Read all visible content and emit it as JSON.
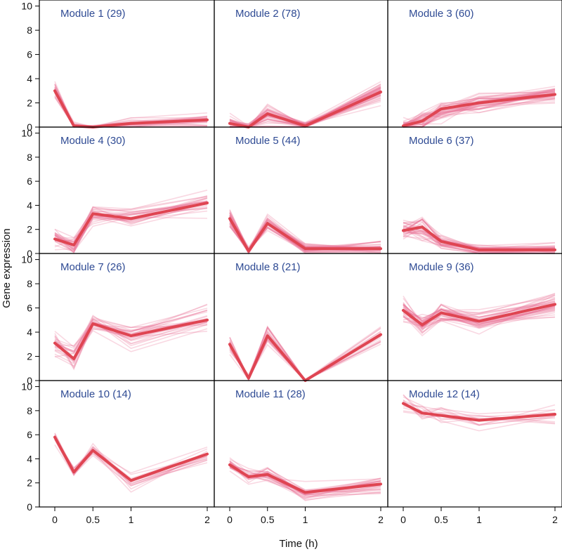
{
  "figure": {
    "xlabel": "Time (h)",
    "ylabel": "Gene expression",
    "colors": {
      "mean_line": "#df4552",
      "gene_lines": "#e87496",
      "panel_title": "#2f4b94",
      "frame": "#000000"
    }
  },
  "chart_data": {
    "type": "line",
    "layout": "4x3 small multiples",
    "x_values": [
      0,
      0.25,
      0.5,
      1,
      2
    ],
    "x_ticks": [
      0,
      0.5,
      1,
      2
    ],
    "x_tick_labels": [
      "0",
      "0.5",
      "1",
      "2"
    ],
    "ylim": [
      0,
      10.5
    ],
    "y_ticks": [
      0,
      2,
      4,
      6,
      8,
      10
    ],
    "y_tick_labels": [
      "0",
      "2",
      "4",
      "6",
      "8",
      "10"
    ],
    "xlabel": "Time (h)",
    "ylabel": "Gene expression",
    "grid": false,
    "panels": [
      {
        "title": "Module 1 (29)",
        "mean": [
          3.0,
          0.1,
          0.0,
          0.3,
          0.6
        ],
        "spread": [
          0.7,
          0.25,
          0.15,
          0.55,
          0.7
        ]
      },
      {
        "title": "Module 2 (78)",
        "mean": [
          0.3,
          0.0,
          1.1,
          0.1,
          2.9
        ],
        "spread": [
          0.7,
          0.3,
          0.9,
          0.3,
          0.8
        ]
      },
      {
        "title": "Module 3 (60)",
        "mean": [
          0.1,
          0.5,
          1.5,
          2.0,
          2.7
        ],
        "spread": [
          0.6,
          0.8,
          1.0,
          0.8,
          0.7
        ]
      },
      {
        "title": "Module 4 (30)",
        "mean": [
          1.2,
          0.7,
          3.3,
          2.9,
          4.2
        ],
        "spread": [
          1.0,
          0.9,
          0.9,
          0.8,
          0.9
        ]
      },
      {
        "title": "Module 5 (44)",
        "mean": [
          2.9,
          0.2,
          2.5,
          0.4,
          0.4
        ],
        "spread": [
          0.8,
          0.3,
          0.6,
          0.5,
          0.6
        ]
      },
      {
        "title": "Module 6 (37)",
        "mean": [
          1.9,
          2.2,
          1.0,
          0.3,
          0.3
        ],
        "spread": [
          0.7,
          1.0,
          0.7,
          0.5,
          0.7
        ]
      },
      {
        "title": "Module 7 (26)",
        "mean": [
          3.1,
          1.8,
          4.7,
          3.7,
          5.0
        ],
        "spread": [
          1.0,
          1.2,
          0.9,
          1.0,
          1.0
        ]
      },
      {
        "title": "Module 8 (21)",
        "mean": [
          3.0,
          0.2,
          3.7,
          0.0,
          3.8
        ],
        "spread": [
          1.0,
          0.3,
          0.9,
          0.1,
          1.0
        ]
      },
      {
        "title": "Module 9 (36)",
        "mean": [
          5.8,
          4.6,
          5.6,
          4.9,
          6.3
        ],
        "spread": [
          1.0,
          1.0,
          0.9,
          0.9,
          1.1
        ]
      },
      {
        "title": "Module 10 (14)",
        "mean": [
          5.8,
          2.9,
          4.7,
          2.2,
          4.4
        ],
        "spread": [
          0.7,
          0.6,
          0.6,
          0.8,
          0.7
        ]
      },
      {
        "title": "Module 11 (28)",
        "mean": [
          3.5,
          2.5,
          2.7,
          1.2,
          1.9
        ],
        "spread": [
          0.6,
          0.6,
          0.6,
          0.7,
          0.8
        ]
      },
      {
        "title": "Module 12 (14)",
        "mean": [
          8.6,
          7.8,
          7.6,
          7.2,
          7.7
        ],
        "spread": [
          0.8,
          0.8,
          0.8,
          0.7,
          0.9
        ]
      }
    ]
  }
}
